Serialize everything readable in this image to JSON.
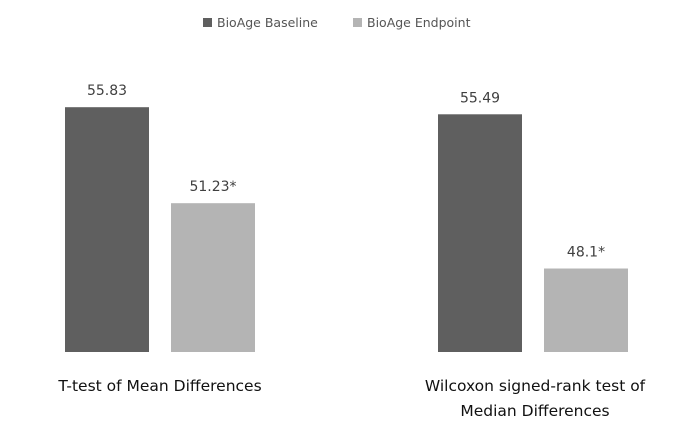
{
  "chart_data": {
    "type": "bar",
    "title": "",
    "xlabel": "",
    "ylabel": "",
    "ylim": [
      44.1,
      58
    ],
    "grid": false,
    "y_axis_visible": false,
    "legend_position": "top",
    "categories": [
      [
        "T-test of Mean Differences"
      ],
      [
        "Wilcoxon signed-rank test of",
        "Median Differences"
      ]
    ],
    "series": [
      {
        "name": "BioAge Baseline",
        "color": "#5f5f5f",
        "values": [
          55.83,
          55.49
        ],
        "labels": [
          "55.83",
          "55.49"
        ]
      },
      {
        "name": "BioAge Endpoint",
        "color": "#b4b4b4",
        "values": [
          51.23,
          48.1
        ],
        "labels": [
          "51.23*",
          "48.1*"
        ]
      }
    ]
  }
}
